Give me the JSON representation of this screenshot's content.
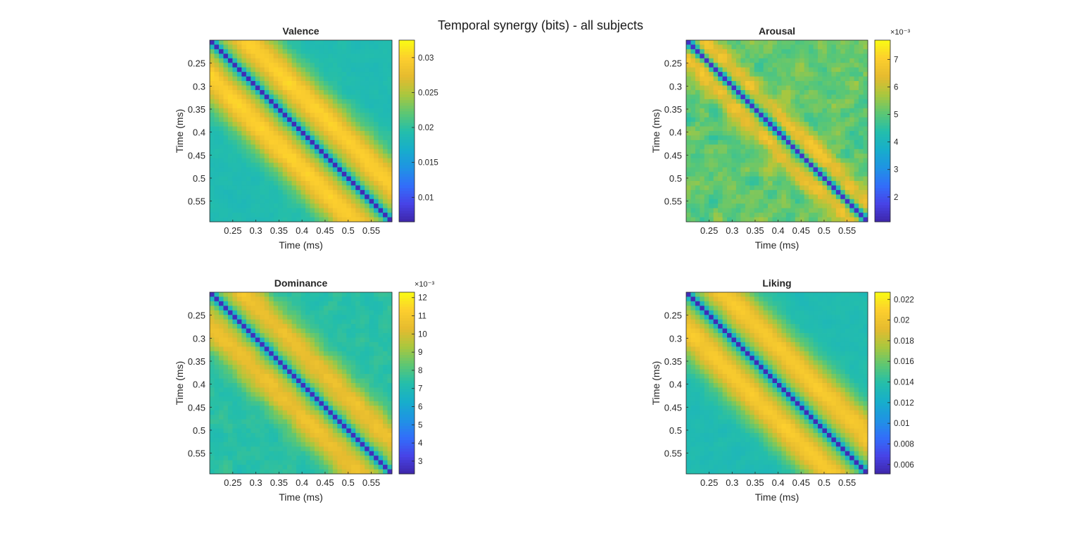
{
  "figure": {
    "title": "Temporal synergy (bits) - all subjects"
  },
  "chart_data": [
    {
      "type": "heatmap",
      "title": "Valence",
      "xlabel": "Time (ms)",
      "ylabel": "Time (ms)",
      "x_ticks": [
        "0.25",
        "0.3",
        "0.35",
        "0.4",
        "0.45",
        "0.5",
        "0.55"
      ],
      "y_ticks": [
        "0.25",
        "0.3",
        "0.35",
        "0.4",
        "0.45",
        "0.5",
        "0.55"
      ],
      "x_range": [
        0.2,
        0.595
      ],
      "y_range": [
        0.2,
        0.595
      ],
      "y_direction": "reverse",
      "grid_size": 40,
      "colormap": "parula",
      "colorbar": {
        "range": [
          0.0065,
          0.0325
        ],
        "exponent_label": "",
        "ticks": [
          "0.01",
          "0.015",
          "0.02",
          "0.025",
          "0.03"
        ],
        "tick_values": [
          0.01,
          0.015,
          0.02,
          0.025,
          0.03
        ]
      },
      "structure": {
        "diagonal_value": 0.007,
        "near_diagonal_peak": 0.03,
        "peak_offset": 0.08,
        "far_value": 0.019,
        "noise": 0.0008
      }
    },
    {
      "type": "heatmap",
      "title": "Arousal",
      "xlabel": "Time (ms)",
      "ylabel": "Time (ms)",
      "x_ticks": [
        "0.25",
        "0.3",
        "0.35",
        "0.4",
        "0.45",
        "0.5",
        "0.55"
      ],
      "y_ticks": [
        "0.25",
        "0.3",
        "0.35",
        "0.4",
        "0.45",
        "0.5",
        "0.55"
      ],
      "x_range": [
        0.2,
        0.595
      ],
      "y_range": [
        0.2,
        0.595
      ],
      "y_direction": "reverse",
      "grid_size": 40,
      "colormap": "parula",
      "colorbar": {
        "range": [
          1.1,
          7.7
        ],
        "exponent_label": "×10⁻³",
        "ticks": [
          "2",
          "3",
          "4",
          "5",
          "6",
          "7"
        ],
        "tick_values": [
          2,
          3,
          4,
          5,
          6,
          7
        ]
      },
      "structure": {
        "diagonal_value": 1.4,
        "near_diagonal_peak": 6.4,
        "peak_offset": 0.04,
        "far_value": 5.1,
        "noise": 0.7
      }
    },
    {
      "type": "heatmap",
      "title": "Dominance",
      "xlabel": "Time (ms)",
      "ylabel": "Time (ms)",
      "x_ticks": [
        "0.25",
        "0.3",
        "0.35",
        "0.4",
        "0.45",
        "0.5",
        "0.55"
      ],
      "y_ticks": [
        "0.25",
        "0.3",
        "0.35",
        "0.4",
        "0.45",
        "0.5",
        "0.55"
      ],
      "x_range": [
        0.2,
        0.595
      ],
      "y_range": [
        0.2,
        0.595
      ],
      "y_direction": "reverse",
      "grid_size": 40,
      "colormap": "parula",
      "colorbar": {
        "range": [
          2.3,
          12.3
        ],
        "exponent_label": "×10⁻³",
        "ticks": [
          "3",
          "4",
          "5",
          "6",
          "7",
          "8",
          "9",
          "10",
          "11",
          "12"
        ],
        "tick_values": [
          3,
          4,
          5,
          6,
          7,
          8,
          9,
          10,
          11,
          12
        ]
      },
      "structure": {
        "diagonal_value": 2.6,
        "near_diagonal_peak": 10.6,
        "peak_offset": 0.07,
        "far_value": 7.4,
        "noise": 0.45
      }
    },
    {
      "type": "heatmap",
      "title": "Liking",
      "xlabel": "Time (ms)",
      "ylabel": "Time (ms)",
      "x_ticks": [
        "0.25",
        "0.3",
        "0.35",
        "0.4",
        "0.45",
        "0.5",
        "0.55"
      ],
      "y_ticks": [
        "0.25",
        "0.3",
        "0.35",
        "0.4",
        "0.45",
        "0.5",
        "0.55"
      ],
      "x_range": [
        0.2,
        0.595
      ],
      "y_range": [
        0.2,
        0.595
      ],
      "y_direction": "reverse",
      "grid_size": 40,
      "colormap": "parula",
      "colorbar": {
        "range": [
          0.0051,
          0.0227
        ],
        "exponent_label": "",
        "ticks": [
          "0.006",
          "0.008",
          "0.01",
          "0.012",
          "0.014",
          "0.016",
          "0.018",
          "0.02",
          "0.022"
        ],
        "tick_values": [
          0.006,
          0.008,
          0.01,
          0.012,
          0.014,
          0.016,
          0.018,
          0.02,
          0.022
        ]
      },
      "structure": {
        "diagonal_value": 0.0055,
        "near_diagonal_peak": 0.0205,
        "peak_offset": 0.08,
        "far_value": 0.0135,
        "noise": 0.0005
      }
    }
  ]
}
